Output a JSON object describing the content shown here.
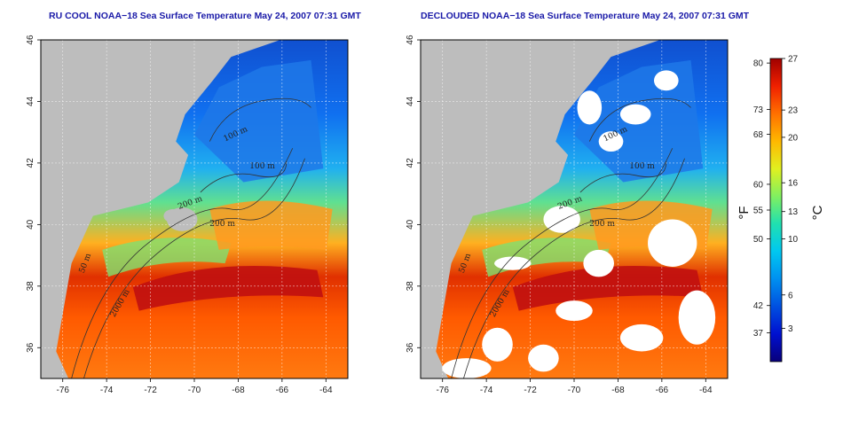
{
  "panels": [
    {
      "title": "RU COOL NOAA−18 Sea Surface Temperature May 24, 2007 07:31 GMT",
      "land_color": "#bdbdbd",
      "cloud_color": "#bdbdbd",
      "contour_labels": [
        "100 m",
        "100 m",
        "200 m",
        "200 m",
        "50 m",
        "2000 m"
      ]
    },
    {
      "title": "DECLOUDED NOAA−18 Sea Surface Temperature May 24, 2007 07:31 GMT",
      "land_color": "#bdbdbd",
      "cloud_color": "#ffffff",
      "contour_labels": [
        "100 m",
        "100 m",
        "200 m",
        "200 m",
        "50 m",
        "2000 m"
      ]
    }
  ],
  "axes": {
    "x_ticks": [
      "-76",
      "-74",
      "-72",
      "-70",
      "-68",
      "-66",
      "-64"
    ],
    "y_ticks": [
      "36",
      "38",
      "40",
      "42",
      "44",
      "46"
    ],
    "lon_range": [
      -77,
      -63
    ],
    "lat_range": [
      35,
      46
    ]
  },
  "colorbar": {
    "fahrenheit_ticks": [
      "80",
      "73",
      "68",
      "60",
      "55",
      "50",
      "42",
      "37"
    ],
    "celsius_ticks": [
      "27",
      "23",
      "20",
      "16",
      "13",
      "10",
      "6",
      "3"
    ],
    "fahrenheit_unit": "°F",
    "celsius_unit": "°C",
    "colors": [
      "#08007a",
      "#0010d0",
      "#0050e0",
      "#0090f0",
      "#00c8f0",
      "#20e0b0",
      "#80f060",
      "#e0f020",
      "#ffb800",
      "#ff7000",
      "#f02000",
      "#a00000"
    ]
  }
}
